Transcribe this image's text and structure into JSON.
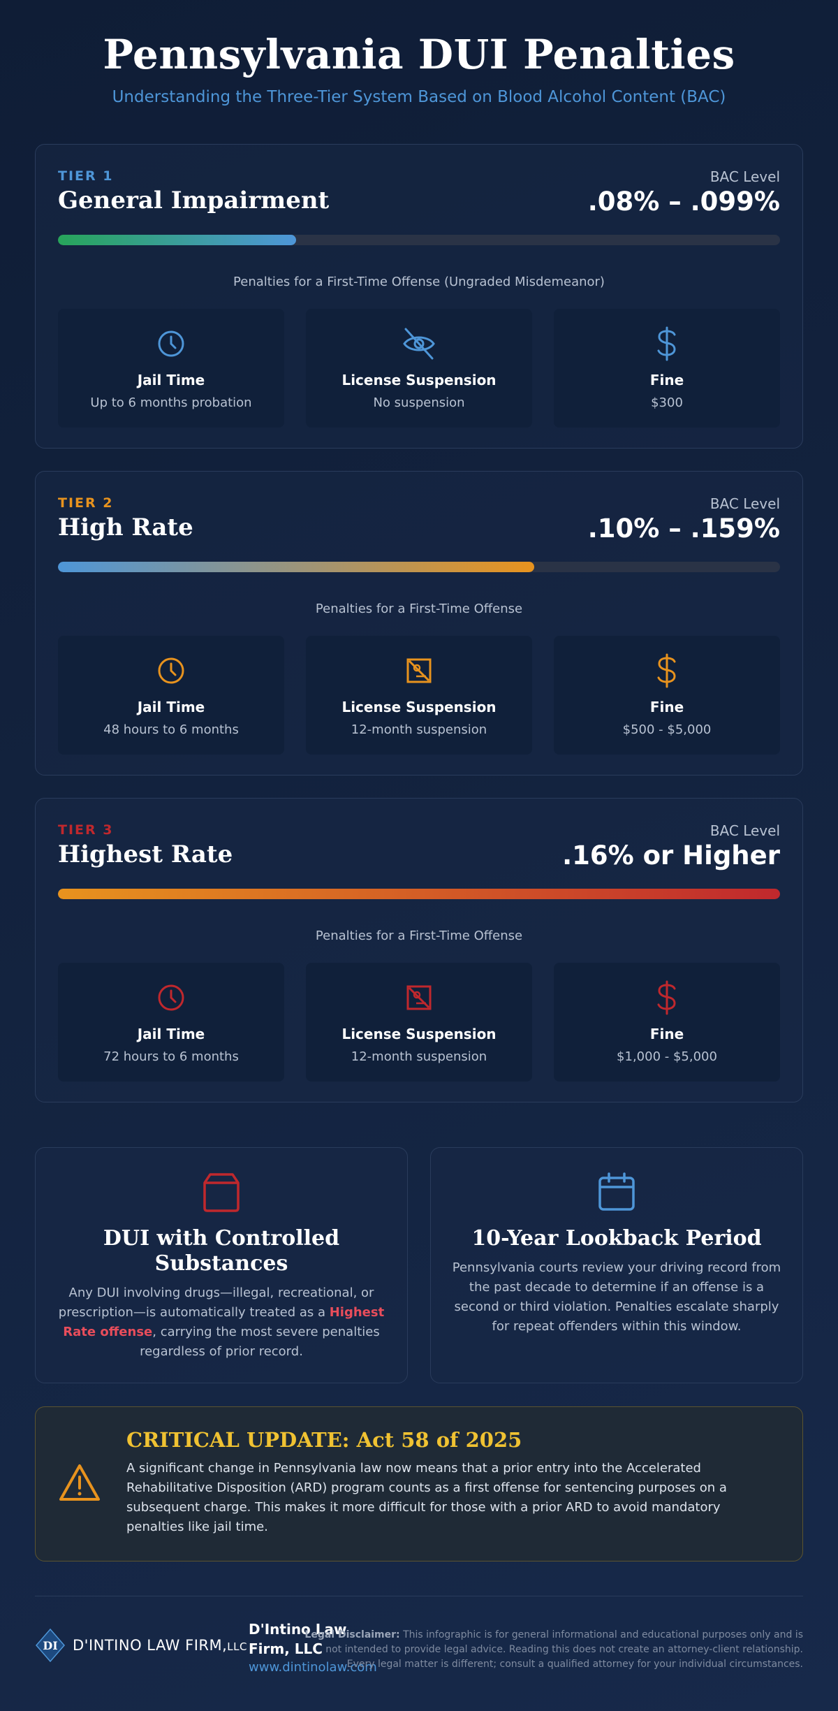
{
  "header": {
    "title": "Pennsylvania DUI Penalties",
    "subtitle": "Understanding the Three-Tier System Based on Blood Alcohol Content (BAC)"
  },
  "colors": {
    "tier1_accent": "#4e96d8",
    "tier2_accent": "#e8931e",
    "tier3_accent": "#c0282d",
    "highlight": "#e84d5b",
    "alert_title": "#f0c232"
  },
  "tiers": [
    {
      "label": "TIER 1",
      "name": "General Impairment",
      "bac_title": "BAC Level",
      "bac_value": ".08% – .099%",
      "bar_fill_fraction": 0.33,
      "penalty_heading": "Penalties for a First-Time Offense (Ungraded Misdemeanor)",
      "penalties": [
        {
          "icon": "clock-icon",
          "title": "Jail Time",
          "value": "Up to 6 months probation"
        },
        {
          "icon": "eye-slash-icon",
          "title": "License Suspension",
          "value": "No suspension"
        },
        {
          "icon": "dollar-icon",
          "title": "Fine",
          "value": "$300"
        }
      ]
    },
    {
      "label": "TIER 2",
      "name": "High Rate",
      "bac_title": "BAC Level",
      "bac_value": ".10% – .159%",
      "bar_fill_fraction": 0.66,
      "penalty_heading": "Penalties for a First-Time Offense",
      "penalties": [
        {
          "icon": "clock-icon",
          "title": "Jail Time",
          "value": "48 hours to 6 months"
        },
        {
          "icon": "license-crossed-icon",
          "title": "License Suspension",
          "value": "12-month suspension"
        },
        {
          "icon": "dollar-icon",
          "title": "Fine",
          "value": "$500 - $5,000"
        }
      ]
    },
    {
      "label": "TIER 3",
      "name": "Highest Rate",
      "bac_title": "BAC Level",
      "bac_value": ".16% or Higher",
      "bar_fill_fraction": 1.0,
      "penalty_heading": "Penalties for a First-Time Offense",
      "penalties": [
        {
          "icon": "clock-icon",
          "title": "Jail Time",
          "value": "72 hours to 6 months"
        },
        {
          "icon": "license-crossed-icon",
          "title": "License Suspension",
          "value": "12-month suspension"
        },
        {
          "icon": "dollar-icon",
          "title": "Fine",
          "value": "$1,000 - $5,000"
        }
      ]
    }
  ],
  "controlled_substances": {
    "icon": "pill-bottle-icon",
    "title": "DUI with Controlled Substances",
    "text_before": "Any DUI involving drugs—illegal, recreational, or prescription—is automatically treated as a ",
    "highlight": "Highest Rate offense",
    "text_after": ", carrying the most severe penalties regardless of prior record."
  },
  "lookback": {
    "icon": "calendar-icon",
    "title": "10-Year Lookback Period",
    "text": "Pennsylvania courts review your driving record from the past decade to determine if an offense is a second or third violation. Penalties escalate sharply for repeat offenders within this window."
  },
  "alert": {
    "icon": "warning-icon",
    "title": "CRITICAL UPDATE: Act 58 of 2025",
    "text": "A significant change in Pennsylvania law now means that a prior entry into the Accelerated Rehabilitative Disposition (ARD) program counts as a first offense for sentencing purposes on a subsequent charge. This makes it more difficult for those with a prior ARD to avoid mandatory penalties like jail time."
  },
  "footer": {
    "logo_mark": "DI",
    "logo_text": "D'INTINO LAW FIRM,",
    "logo_suffix": "LLC",
    "firm_name_line1": "D'Intino Law",
    "firm_name_line2": "Firm, LLC",
    "url": "www.dintinolaw.com",
    "disclaimer_label": "Legal Disclaimer:",
    "disclaimer_text": "This infographic is for general informational and educational purposes only and is not intended to provide legal advice. Reading this does not create an attorney-client relationship. Every legal matter is different; consult a qualified attorney for your individual circumstances."
  }
}
